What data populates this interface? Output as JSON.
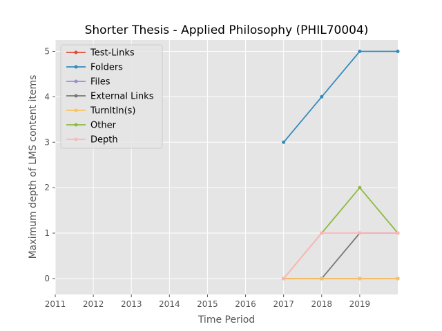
{
  "chart_data": {
    "type": "line",
    "title": "Shorter Thesis - Applied Philosophy (PHIL70004)",
    "xlabel": "Time Period",
    "ylabel": "Maximum depth of LMS content items",
    "x_ticks": [
      "2011",
      "2012",
      "2013",
      "2014",
      "2015",
      "2016",
      "2017",
      "2018",
      "2019"
    ],
    "y_ticks": [
      "0",
      "1",
      "2",
      "3",
      "4",
      "5"
    ],
    "xlim": [
      2011,
      2020
    ],
    "ylim": [
      -0.35,
      5.25
    ],
    "x": [
      2017,
      2018,
      2019,
      2020
    ],
    "grid": true,
    "legend_position": "top-left",
    "background": "#e5e5e5",
    "series": [
      {
        "name": "Test-Links",
        "color": "#e24a33",
        "values": [
          0,
          0,
          0,
          0
        ]
      },
      {
        "name": "Folders",
        "color": "#348abd",
        "values": [
          3,
          4,
          5,
          5
        ]
      },
      {
        "name": "Files",
        "color": "#988ed5",
        "values": [
          0,
          0,
          0,
          0
        ]
      },
      {
        "name": "External Links",
        "color": "#777777",
        "values": [
          0,
          0,
          1,
          1
        ]
      },
      {
        "name": "TurnItIn(s)",
        "color": "#fbc15e",
        "values": [
          0,
          0,
          0,
          0
        ]
      },
      {
        "name": "Other",
        "color": "#8eba42",
        "values": [
          0,
          1,
          2,
          1
        ]
      },
      {
        "name": "Depth",
        "color": "#ffb5b8",
        "values": [
          0,
          1,
          1,
          1
        ]
      }
    ]
  }
}
